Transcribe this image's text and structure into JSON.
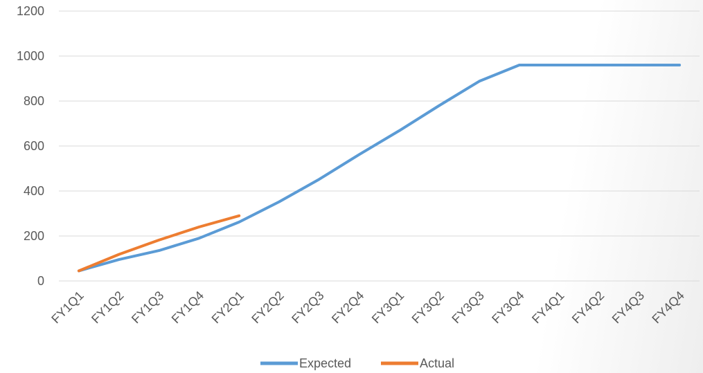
{
  "chart_data": {
    "type": "line",
    "categories": [
      "FY1Q1",
      "FY1Q2",
      "FY1Q3",
      "FY1Q4",
      "FY2Q1",
      "FY2Q2",
      "FY2Q3",
      "FY2Q4",
      "FY3Q1",
      "FY3Q2",
      "FY3Q3",
      "FY3Q4",
      "FY4Q1",
      "FY4Q2",
      "FY4Q3",
      "FY4Q4"
    ],
    "series": [
      {
        "name": "Expected",
        "color": "#5B9BD5",
        "values": [
          45,
          95,
          135,
          190,
          262,
          352,
          452,
          562,
          668,
          780,
          888,
          960,
          960,
          960,
          960,
          960
        ]
      },
      {
        "name": "Actual",
        "color": "#ED7D31",
        "values": [
          45,
          118,
          182,
          240,
          290,
          null,
          null,
          null,
          null,
          null,
          null,
          null,
          null,
          null,
          null,
          null
        ]
      }
    ],
    "title": "",
    "xlabel": "",
    "ylabel": "",
    "ylim": [
      0,
      1200
    ],
    "yticks": [
      0,
      200,
      400,
      600,
      800,
      1000,
      1200
    ],
    "grid": true,
    "legend_position": "bottom"
  }
}
